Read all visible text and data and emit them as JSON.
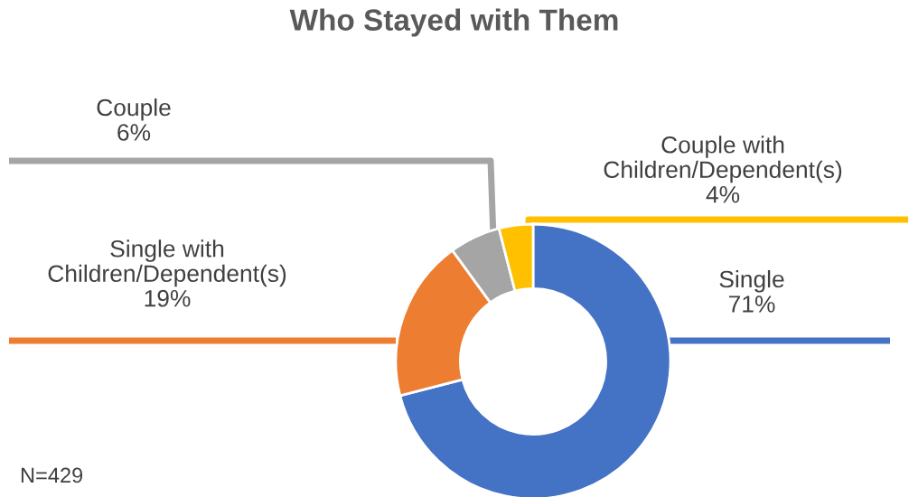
{
  "chart_data": {
    "type": "donut",
    "title": "Who Stayed with Them",
    "categories": [
      "Single",
      "Single with\nChildren/Dependent(s)",
      "Couple",
      "Couple with\nChildren/Dependent(s)"
    ],
    "values": [
      71,
      19,
      6,
      4
    ],
    "colors": [
      "#4472c4",
      "#ed7d31",
      "#a5a5a5",
      "#ffc000"
    ],
    "value_labels": [
      "71%",
      "19%",
      "6%",
      "4%"
    ],
    "legend": false,
    "annotations": [
      "N=429"
    ]
  }
}
